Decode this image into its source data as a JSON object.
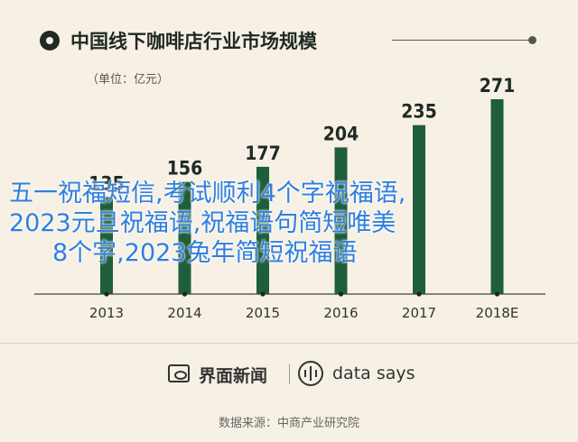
{
  "chart_data": {
    "type": "bar",
    "title": "中国线下咖啡店行业市场规模",
    "unit_label": "（单位：亿元）",
    "categories": [
      "2013",
      "2014",
      "2015",
      "2016",
      "2017",
      "2018E"
    ],
    "values": [
      135,
      156,
      177,
      204,
      235,
      271
    ],
    "ylim": [
      0,
      271
    ],
    "bar_color": "#1f5e3c",
    "grid": false,
    "legend": "none"
  },
  "overlay_text": [
    "五一祝福短信,考试顺利4个字祝福语,",
    "2023元旦祝福语,祝福语句简短唯美",
    "8个字,2023兔年简短祝福语"
  ],
  "footer": {
    "brand1": "界面新闻",
    "brand2": "data says",
    "source": "数据来源：中商产业研究院"
  },
  "colors": {
    "background": "#f6f1e4",
    "title": "#1f2a24",
    "overlay_text": "#2e7fe0"
  },
  "icons": {
    "title_marker": "circle-dot-icon",
    "brand1": "jiemian-logo-icon",
    "brand2": "data-says-logo-icon"
  }
}
